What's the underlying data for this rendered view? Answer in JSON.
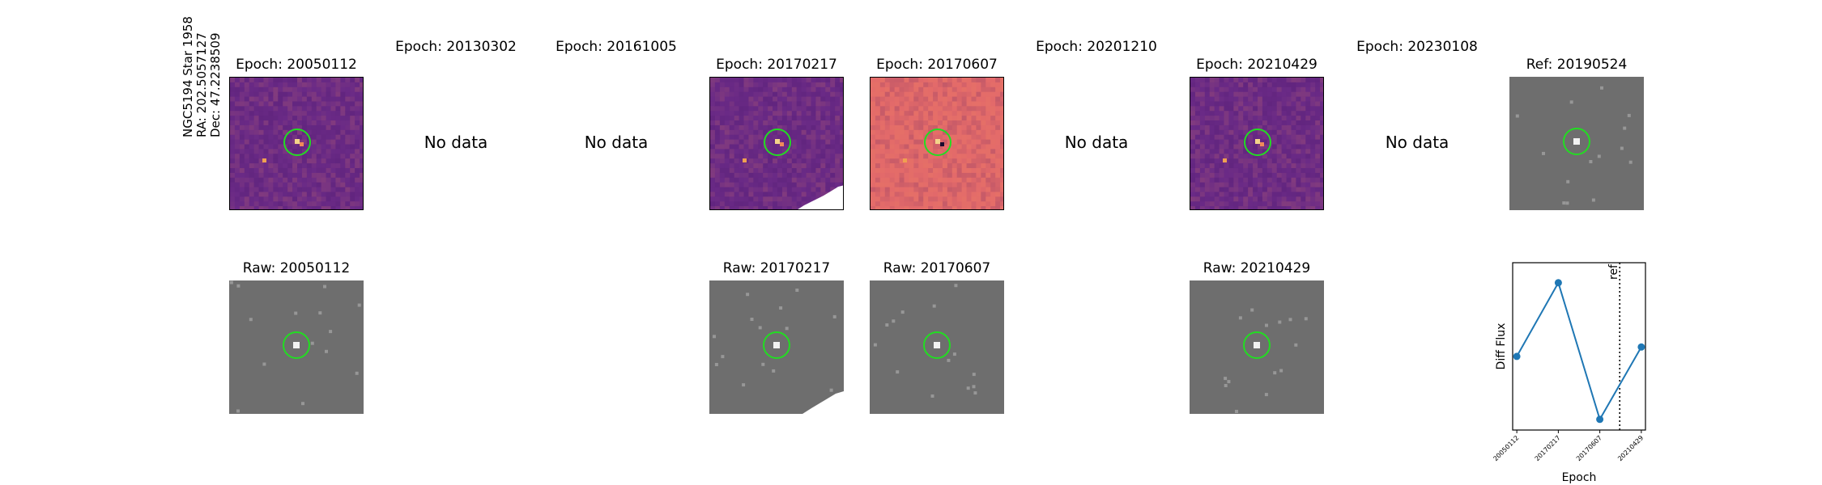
{
  "target": {
    "name": "NGC5194 Star 1958",
    "ra": "RA: 202.5057127",
    "dec": "Dec: 47.2238509"
  },
  "epochs": [
    {
      "diff_title": "Epoch: 20050112",
      "raw_title": "Raw: 20050112",
      "has_data": true
    },
    {
      "diff_title": "Epoch: 20130302",
      "has_data": false,
      "no_data_text": "No data"
    },
    {
      "diff_title": "Epoch: 20161005",
      "has_data": false,
      "no_data_text": "No data"
    },
    {
      "diff_title": "Epoch: 20170217",
      "raw_title": "Raw: 20170217",
      "has_data": true
    },
    {
      "diff_title": "Epoch: 20170607",
      "raw_title": "Raw: 20170607",
      "has_data": true
    },
    {
      "diff_title": "Epoch: 20201210",
      "has_data": false,
      "no_data_text": "No data"
    },
    {
      "diff_title": "Epoch: 20210429",
      "raw_title": "Raw: 20210429",
      "has_data": true
    },
    {
      "diff_title": "Epoch: 20230108",
      "has_data": false,
      "no_data_text": "No data"
    }
  ],
  "reference": {
    "title": "Ref: 20190524"
  },
  "colors": {
    "circle": "#22dd22",
    "diff_cmap_dark": "#6a2a86",
    "diff_cmap_light": "#e36a6a",
    "raw_gray": "#6e6e6e",
    "line": "#1f77b4"
  },
  "chart_data": {
    "type": "line",
    "xlabel": "Epoch",
    "ylabel": "Diff Flux",
    "x": [
      "20050112",
      "20170217",
      "20170607",
      "20210429"
    ],
    "y": [
      0.45,
      1.0,
      -0.02,
      0.52
    ],
    "ylim": [
      -0.1,
      1.15
    ],
    "reference_line": {
      "label": "ref",
      "position": "between 20170607 and 20210429"
    },
    "grid": false
  }
}
